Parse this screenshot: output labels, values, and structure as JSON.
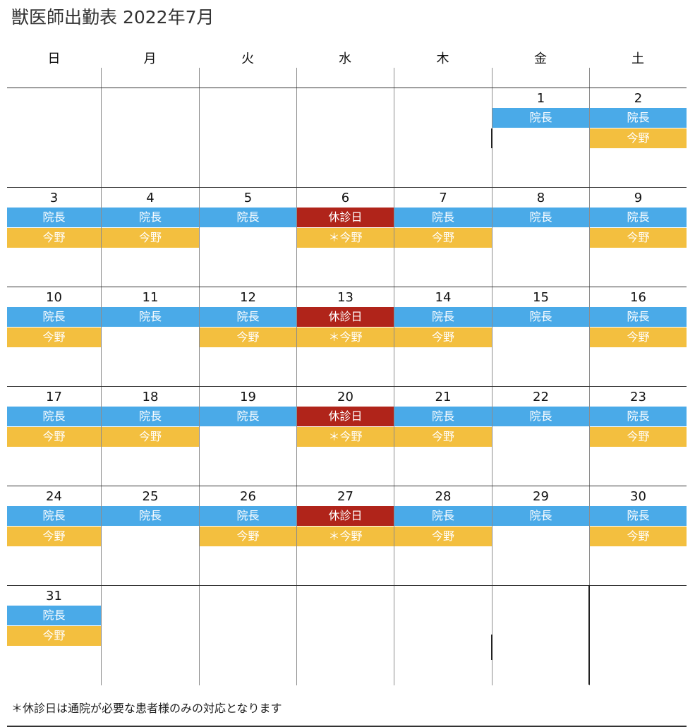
{
  "title": "獣医師出勤表 2022年7月",
  "weekdays": [
    "日",
    "月",
    "火",
    "水",
    "木",
    "金",
    "土"
  ],
  "shift_colors": {
    "院長": "#4aaae8",
    "今野": "#f3bf3f",
    "休診日": "#b0241a",
    "＊今野": "#f3bf3f"
  },
  "weeks": [
    [
      {
        "day": "",
        "shifts": []
      },
      {
        "day": "",
        "shifts": []
      },
      {
        "day": "",
        "shifts": []
      },
      {
        "day": "",
        "shifts": []
      },
      {
        "day": "",
        "shifts": []
      },
      {
        "day": "1",
        "shifts": [
          "院長"
        ]
      },
      {
        "day": "2",
        "shifts": [
          "院長",
          "今野"
        ]
      }
    ],
    [
      {
        "day": "3",
        "shifts": [
          "院長",
          "今野"
        ]
      },
      {
        "day": "4",
        "shifts": [
          "院長",
          "今野"
        ]
      },
      {
        "day": "5",
        "shifts": [
          "院長"
        ]
      },
      {
        "day": "6",
        "shifts": [
          "休診日",
          "＊今野"
        ]
      },
      {
        "day": "7",
        "shifts": [
          "院長",
          "今野"
        ]
      },
      {
        "day": "8",
        "shifts": [
          "院長"
        ]
      },
      {
        "day": "9",
        "shifts": [
          "院長",
          "今野"
        ]
      }
    ],
    [
      {
        "day": "10",
        "shifts": [
          "院長",
          "今野"
        ]
      },
      {
        "day": "11",
        "shifts": [
          "院長"
        ]
      },
      {
        "day": "12",
        "shifts": [
          "院長",
          "今野"
        ]
      },
      {
        "day": "13",
        "shifts": [
          "休診日",
          "＊今野"
        ]
      },
      {
        "day": "14",
        "shifts": [
          "院長",
          "今野"
        ]
      },
      {
        "day": "15",
        "shifts": [
          "院長"
        ]
      },
      {
        "day": "16",
        "shifts": [
          "院長",
          "今野"
        ]
      }
    ],
    [
      {
        "day": "17",
        "shifts": [
          "院長",
          "今野"
        ]
      },
      {
        "day": "18",
        "shifts": [
          "院長",
          "今野"
        ]
      },
      {
        "day": "19",
        "shifts": [
          "院長"
        ]
      },
      {
        "day": "20",
        "shifts": [
          "休診日",
          "＊今野"
        ]
      },
      {
        "day": "21",
        "shifts": [
          "院長",
          "今野"
        ]
      },
      {
        "day": "22",
        "shifts": [
          "院長"
        ]
      },
      {
        "day": "23",
        "shifts": [
          "院長",
          "今野"
        ]
      }
    ],
    [
      {
        "day": "24",
        "shifts": [
          "院長",
          "今野"
        ]
      },
      {
        "day": "25",
        "shifts": [
          "院長"
        ]
      },
      {
        "day": "26",
        "shifts": [
          "院長",
          "今野"
        ]
      },
      {
        "day": "27",
        "shifts": [
          "休診日",
          "＊今野"
        ]
      },
      {
        "day": "28",
        "shifts": [
          "院長",
          "今野"
        ]
      },
      {
        "day": "29",
        "shifts": [
          "院長"
        ]
      },
      {
        "day": "30",
        "shifts": [
          "院長",
          "今野"
        ]
      }
    ],
    [
      {
        "day": "31",
        "shifts": [
          "院長",
          "今野"
        ]
      },
      {
        "day": "",
        "shifts": []
      },
      {
        "day": "",
        "shifts": []
      },
      {
        "day": "",
        "shifts": []
      },
      {
        "day": "",
        "shifts": []
      },
      {
        "day": "",
        "shifts": []
      },
      {
        "day": "",
        "shifts": []
      }
    ]
  ],
  "note": "＊休診日は通院が必要な患者様のみの対応となります"
}
